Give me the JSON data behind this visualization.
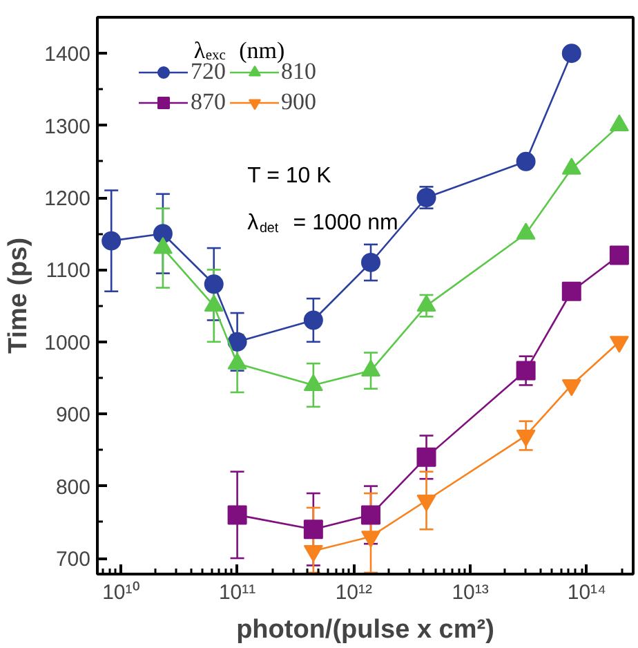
{
  "chart_data": {
    "type": "line",
    "xlabel": "photon/(pulse x cm²)",
    "ylabel": "Time (ps)",
    "legend_title": "λ$_{exc}$ (nm)",
    "legend": "top left",
    "grid": false,
    "log": "x",
    "xlim": [
      6300000000.0,
      250000000000000.0
    ],
    "ylim": [
      678,
      1450
    ],
    "xticks": [
      {
        "value": 10000000000.0,
        "label": "10¹⁰"
      },
      {
        "value": 100000000000.0,
        "label": "10¹¹"
      },
      {
        "value": 1000000000000.0,
        "label": "10¹²"
      },
      {
        "value": 10000000000000.0,
        "label": "10¹³"
      },
      {
        "value": 100000000000000.0,
        "label": "10¹⁴"
      }
    ],
    "yticks": [
      700,
      800,
      900,
      1000,
      1100,
      1200,
      1300,
      1400
    ],
    "annotations": [
      "T = 10 K",
      "λ$_{det}$ = 1000 nm"
    ],
    "series": [
      {
        "name": "720",
        "color": "#2b3f9e",
        "marker": "circle",
        "x": [
          8300000000.0,
          23000000000.0,
          63000000000.0,
          100000000000.0,
          450000000000.0,
          1400000000000.0,
          4200000000000.0,
          30000000000000.0,
          74000000000000.0
        ],
        "values": [
          1140,
          1150,
          1080,
          1000,
          1030,
          1110,
          1200,
          1250,
          1400
        ],
        "errors": [
          70,
          55,
          50,
          40,
          30,
          25,
          15,
          null,
          null
        ]
      },
      {
        "name": "810",
        "color": "#5bc84a",
        "marker": "triangle",
        "x": [
          23000000000.0,
          63000000000.0,
          100000000000.0,
          450000000000.0,
          1400000000000.0,
          4200000000000.0,
          30000000000000.0,
          74000000000000.0,
          190000000000000.0
        ],
        "values": [
          1130,
          1050,
          970,
          940,
          960,
          1050,
          1150,
          1240,
          1300
        ],
        "errors": [
          55,
          50,
          40,
          30,
          25,
          15,
          null,
          null,
          null
        ]
      },
      {
        "name": "870",
        "color": "#7f0f7f",
        "marker": "square",
        "x": [
          100000000000.0,
          450000000000.0,
          1400000000000.0,
          4200000000000.0,
          30000000000000.0,
          74000000000000.0,
          190000000000000.0
        ],
        "values": [
          760,
          740,
          760,
          840,
          960,
          1070,
          1120
        ],
        "errors": [
          60,
          50,
          40,
          30,
          20,
          null,
          null
        ]
      },
      {
        "name": "900",
        "color": "#f7821e",
        "marker": "triangle_down",
        "x": [
          450000000000.0,
          1400000000000.0,
          4200000000000.0,
          30000000000000.0,
          74000000000000.0,
          190000000000000.0
        ],
        "values": [
          710,
          730,
          780,
          870,
          940,
          1000
        ],
        "errors": [
          [
            680,
            770
          ],
          [
            680,
            790
          ],
          40,
          20,
          null,
          null
        ]
      }
    ]
  }
}
